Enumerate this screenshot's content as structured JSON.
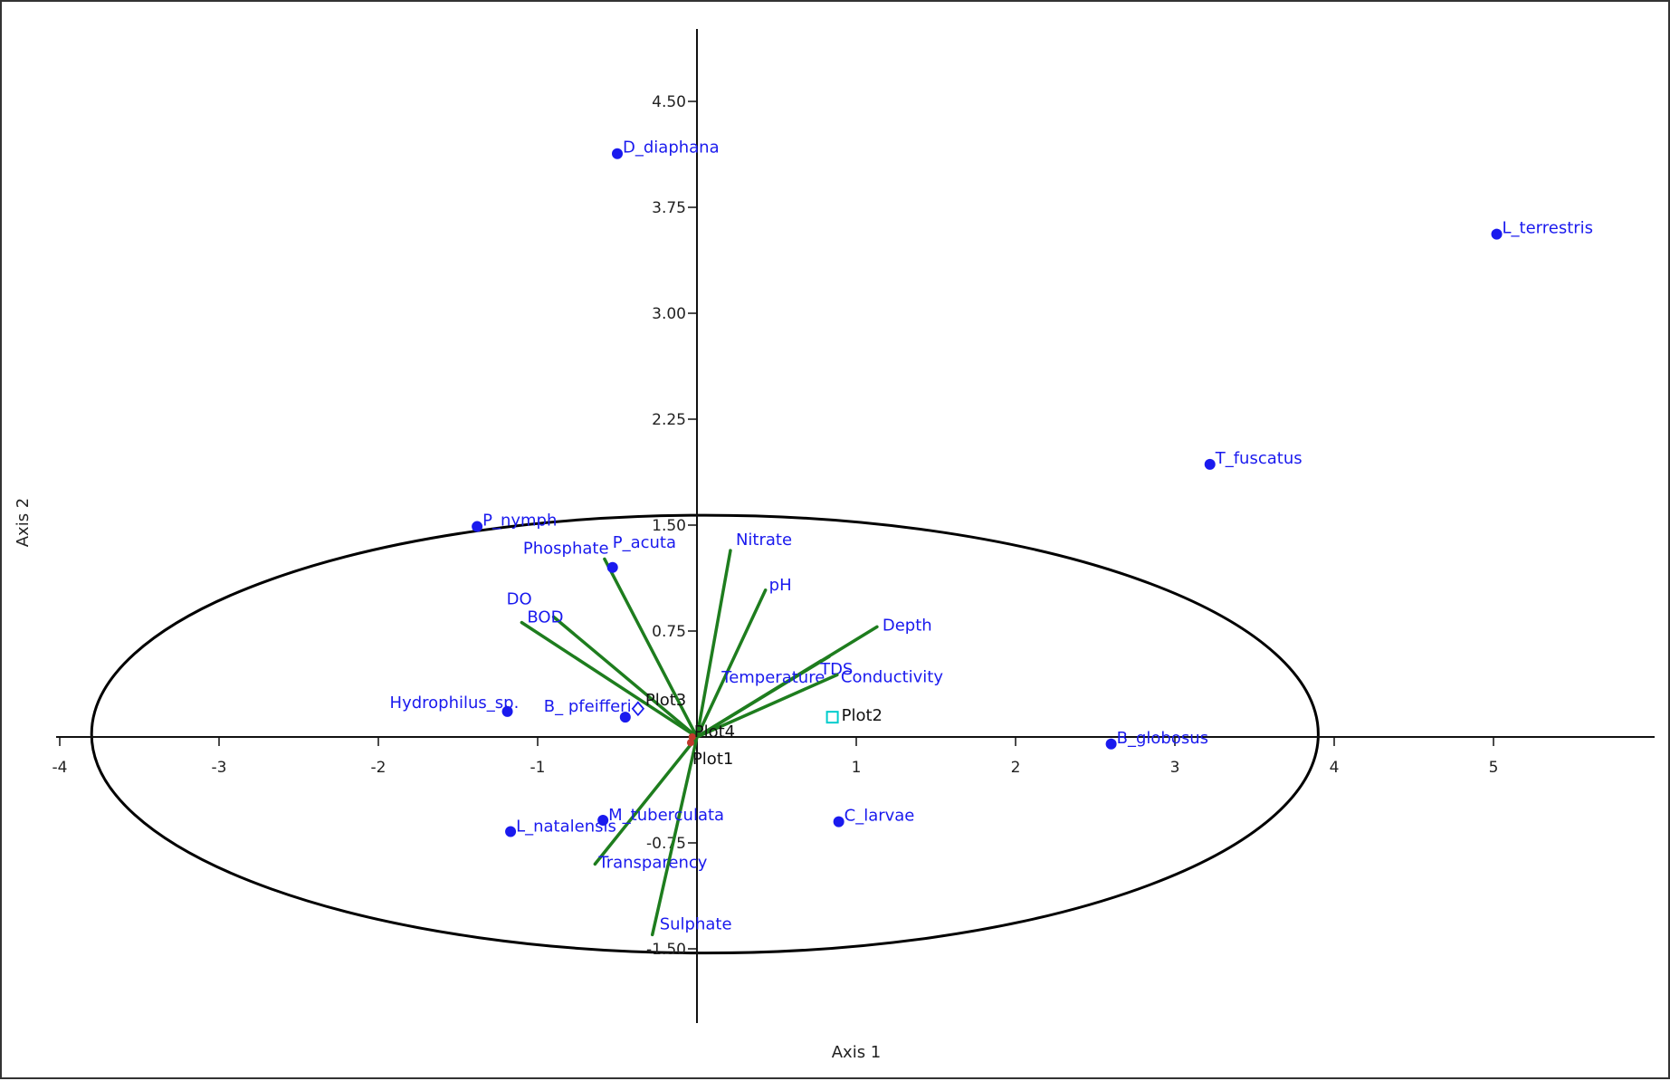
{
  "chart_data": {
    "type": "scatter",
    "subtype": "CCA biplot",
    "xlabel": "Axis 1",
    "ylabel": "Axis 2",
    "xlim": [
      -4,
      6
    ],
    "ylim": [
      -2.0,
      4.95
    ],
    "x_ticks": [
      {
        "value": -4,
        "label": "-4"
      },
      {
        "value": -3,
        "label": "-3"
      },
      {
        "value": -2,
        "label": "-2"
      },
      {
        "value": -1,
        "label": "-1"
      },
      {
        "value": 1,
        "label": "1"
      },
      {
        "value": 2,
        "label": "2"
      },
      {
        "value": 3,
        "label": "3"
      },
      {
        "value": 4,
        "label": "4"
      },
      {
        "value": 5,
        "label": "5"
      }
    ],
    "y_ticks": [
      {
        "value": 4.5,
        "label": "4.50"
      },
      {
        "value": 3.75,
        "label": "3.75"
      },
      {
        "value": 3.0,
        "label": "3.00"
      },
      {
        "value": 2.25,
        "label": "2.25"
      },
      {
        "value": 1.5,
        "label": "1.50"
      },
      {
        "value": 0.75,
        "label": "0.75"
      },
      {
        "value": -0.75,
        "label": "-0.75"
      },
      {
        "value": -1.5,
        "label": "-1.50"
      }
    ],
    "species": [
      {
        "label": "D_diaphana",
        "x": -0.5,
        "y": 4.13
      },
      {
        "label": "L_terrestris",
        "x": 5.02,
        "y": 3.56
      },
      {
        "label": "T_fuscatus",
        "x": 3.22,
        "y": 1.93
      },
      {
        "label": "P_nymph",
        "x": -1.38,
        "y": 1.49
      },
      {
        "label": "P_acuta",
        "x": -0.53,
        "y": 1.2
      },
      {
        "label": "Hydrophilus_sp.",
        "x": -1.19,
        "y": 0.18
      },
      {
        "label": "B_ pfeifferi",
        "x": -0.45,
        "y": 0.14
      },
      {
        "label": "B_globosus",
        "x": 2.6,
        "y": -0.05
      },
      {
        "label": "L_natalensis",
        "x": -1.17,
        "y": -0.67
      },
      {
        "label": "M_tuberculata",
        "x": -0.59,
        "y": -0.59
      },
      {
        "label": "C_larvae",
        "x": 0.89,
        "y": -0.6
      }
    ],
    "environment_vectors": [
      {
        "label": "Nitrate",
        "x": 0.21,
        "y": 1.32
      },
      {
        "label": "pH",
        "x": 0.43,
        "y": 1.04
      },
      {
        "label": "Depth",
        "x": 1.13,
        "y": 0.78
      },
      {
        "label": "TDS",
        "x": 0.83,
        "y": 0.57
      },
      {
        "label": "Temperature",
        "x": 0.78,
        "y": 0.54
      },
      {
        "label": "Conductivity",
        "x": 0.88,
        "y": 0.44
      },
      {
        "label": "Phosphate",
        "x": -0.58,
        "y": 1.26
      },
      {
        "label": "DO",
        "x": -0.9,
        "y": 0.85
      },
      {
        "label": "BOD",
        "x": -1.1,
        "y": 0.81
      },
      {
        "label": "Transparency",
        "x": -0.64,
        "y": -0.9
      },
      {
        "label": "Sulphate",
        "x": -0.28,
        "y": -1.4
      }
    ],
    "plots": [
      {
        "label": "Plot1",
        "x": -0.04,
        "y": -0.04,
        "marker": "dot",
        "color": "#c0392b"
      },
      {
        "label": "Plot2",
        "x": 0.85,
        "y": 0.14,
        "marker": "square",
        "color": "#00cccc"
      },
      {
        "label": "Plot3",
        "x": -0.37,
        "y": 0.2,
        "marker": "diamond",
        "color": "#1a1aee"
      },
      {
        "label": "Plot4",
        "x": -0.03,
        "y": 0.0,
        "marker": "dot",
        "color": "#c0392b"
      }
    ],
    "ellipse": {
      "cx": 0.05,
      "cy": 0.02,
      "rx": 3.85,
      "ry": 1.55,
      "color": "#000000"
    },
    "colors": {
      "species": "#1a1aee",
      "vectors": "#1e7d1e",
      "axes": "#111111"
    }
  }
}
